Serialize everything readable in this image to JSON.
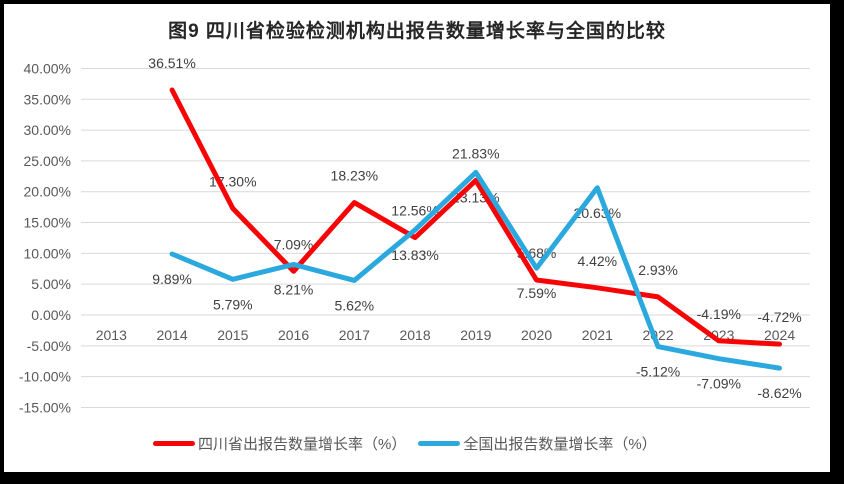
{
  "chart_data": {
    "type": "line",
    "title": "图9  四川省检验检测机构出报告数量增长率与全国的比较",
    "categories": [
      "2013",
      "2014",
      "2015",
      "2016",
      "2017",
      "2018",
      "2019",
      "2020",
      "2021",
      "2022",
      "2023",
      "2024"
    ],
    "series": [
      {
        "name": "四川省出报告数量增长率（%）",
        "color": "#f50505",
        "label_position": "above",
        "values": [
          null,
          36.51,
          17.3,
          7.09,
          18.23,
          12.56,
          21.83,
          5.68,
          4.42,
          2.93,
          -4.19,
          -4.72
        ]
      },
      {
        "name": "全国出报告数量增长率（%）",
        "color": "#2ba9de",
        "label_position": "below",
        "values": [
          null,
          9.89,
          5.79,
          8.21,
          5.62,
          13.83,
          23.13,
          7.59,
          20.63,
          -5.12,
          -7.09,
          -8.62
        ]
      }
    ],
    "y_axis": {
      "min": -15,
      "max": 40,
      "step": 5,
      "tick_labels": [
        "40.00%",
        "35.00%",
        "30.00%",
        "25.00%",
        "20.00%",
        "15.00%",
        "10.00%",
        "5.00%",
        "0.00%",
        "-5.00%",
        "-10.00%",
        "-15.00%"
      ]
    },
    "data_labels": true,
    "grid": true,
    "legend_position": "bottom",
    "styles": {
      "background": "#ffffff",
      "frame_color": "#000000",
      "grid_color": "#d9d9d9",
      "axis_text_color": "#595959",
      "data_label_color": "#404040",
      "title_color": "#262626"
    }
  }
}
